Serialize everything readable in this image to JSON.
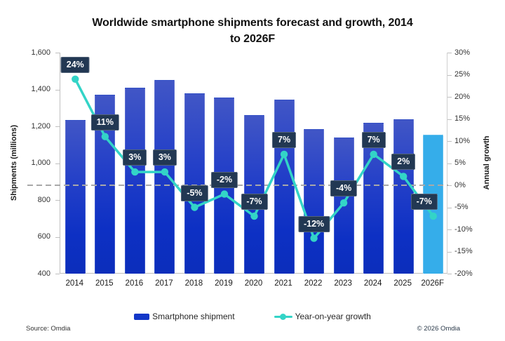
{
  "title_lines": [
    "Worldwide smartphone shipments forecast and growth, 2014",
    "to 2026F"
  ],
  "footer": {
    "source": "Source: Omdia",
    "copyright": "© 2026 Omdia"
  },
  "legend": [
    {
      "label": "Smartphone shipment"
    },
    {
      "label": "Year-on-year growth"
    }
  ],
  "colors": {
    "bar_gradient_top": "#4156C6",
    "bar_gradient_mid": "#0D30C4",
    "bar_gradient_bottom": "#0C2EBB",
    "bar_forecast": "#35ADEA",
    "line": "#33D4C7",
    "label_box": "#223853",
    "label_text": "#FFFFFF",
    "zero_dash": "#A8A8A8",
    "axis_line": "#BFBFBF",
    "legend_swatch": "#1237C8"
  },
  "chart_data": {
    "type": "combo (bar + line)",
    "title": "Worldwide smartphone shipments forecast and growth, 2014 to 2026F",
    "categories": [
      "2014",
      "2015",
      "2016",
      "2017",
      "2018",
      "2019",
      "2020",
      "2021",
      "2022",
      "2023",
      "2024",
      "2025",
      "2026F"
    ],
    "series": [
      {
        "name": "Smartphone shipment",
        "type": "bar",
        "axis": "left",
        "unit": "millions",
        "values": [
          1235,
          1370,
          1410,
          1450,
          1380,
          1355,
          1260,
          1345,
          1185,
          1140,
          1220,
          1240,
          1155
        ],
        "forecast_index": 12
      },
      {
        "name": "Year-on-year growth",
        "type": "line",
        "axis": "right",
        "unit": "percent",
        "values": [
          24,
          11,
          3,
          3,
          -5,
          -2,
          -7,
          7,
          -12,
          -4,
          7,
          2,
          -7
        ],
        "data_labels": [
          "24%",
          "11%",
          "3%",
          "3%",
          "-5%",
          "-2%",
          "-7%",
          "7%",
          "-12%",
          "-4%",
          "7%",
          "2%",
          "-7%"
        ]
      }
    ],
    "left_axis": {
      "title": "Shipments (millions)",
      "min": 400,
      "max": 1600,
      "tick_step": 200,
      "tick_labels": [
        "1,600",
        "1,400",
        "1,200",
        "1,000",
        "800",
        "600",
        "400"
      ]
    },
    "right_axis": {
      "title": "Annual growth",
      "min": -20,
      "max": 30,
      "tick_step": 5,
      "tick_labels": [
        "30%",
        "25%",
        "20%",
        "15%",
        "10%",
        "5%",
        "0%",
        "-5%",
        "-10%",
        "-15%",
        "-20%"
      ]
    },
    "zero_line_on_right_axis": 0,
    "grid": "off",
    "legend_position": "bottom",
    "label_dx": [
      0,
      0,
      0,
      0,
      0,
      0,
      0,
      0,
      0,
      0,
      0,
      0,
      -13
    ]
  }
}
